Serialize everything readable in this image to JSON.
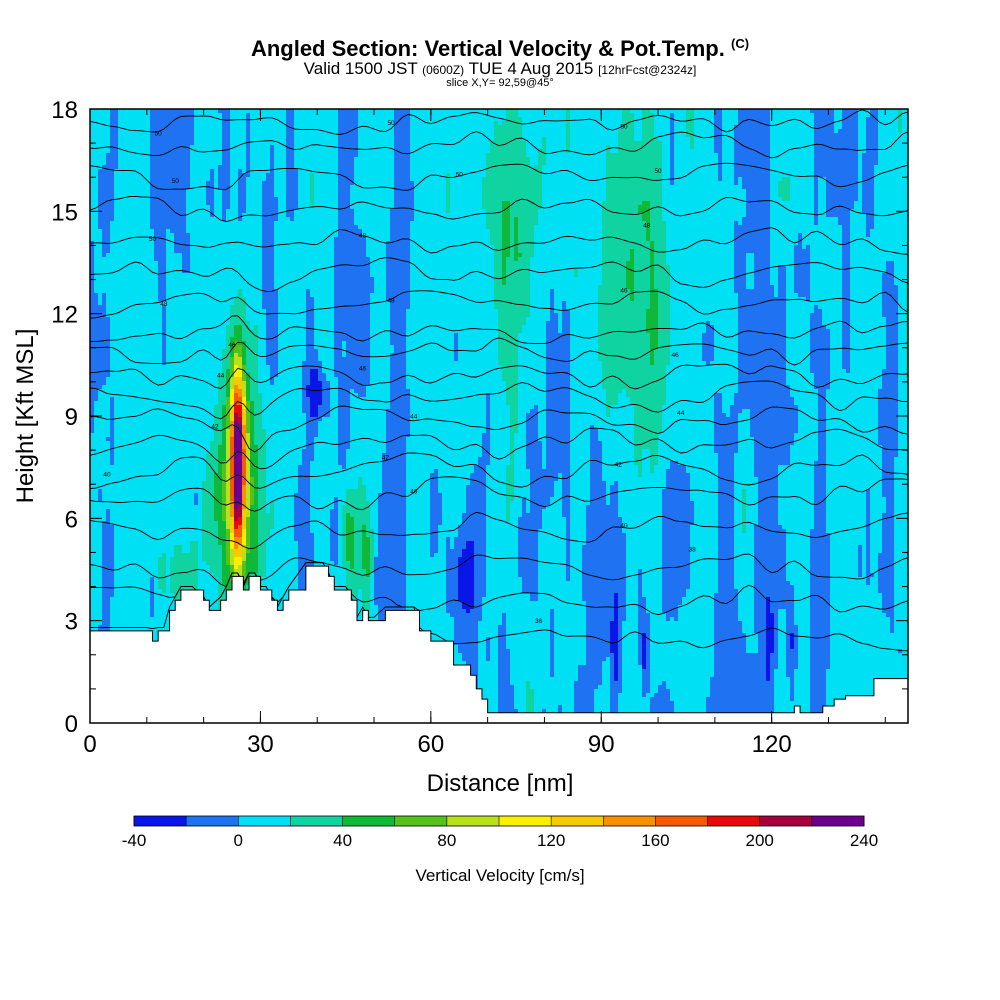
{
  "chart_data": {
    "type": "heatmap",
    "title": "Angled Section: Vertical Velocity & Pot.Temp.",
    "title_unit": "(C)",
    "subtitle": {
      "pre": "Valid 1500 JST",
      "utc": "(0600Z)",
      "date": "TUE 4 Aug 2015",
      "fcst": "[12hrFcst@2324z]"
    },
    "slice_label": "slice X,Y= 92,59@45°",
    "xlabel": "Distance [nm]",
    "ylabel": "Height [Kft MSL]",
    "xlim": [
      0,
      144
    ],
    "ylim": [
      0,
      18
    ],
    "x_ticks": [
      0,
      30,
      60,
      90,
      120
    ],
    "y_ticks": [
      0,
      3,
      6,
      9,
      12,
      15,
      18
    ],
    "grid": false,
    "colorbar": {
      "label": "Vertical Velocity [cm/s]",
      "position": "bottom",
      "bounds": [
        -40,
        -20,
        0,
        20,
        40,
        60,
        80,
        100,
        120,
        140,
        160,
        180,
        200,
        220,
        240
      ],
      "tick_values": [
        -40,
        0,
        40,
        80,
        120,
        160,
        200,
        240
      ],
      "colors": [
        "#0a16e8",
        "#1f73f3",
        "#00e0f5",
        "#0fd3a0",
        "#10b83a",
        "#55c21b",
        "#b8e01b",
        "#f8f000",
        "#f6ca00",
        "#f79000",
        "#f55a00",
        "#e80a0a",
        "#a8003e",
        "#6d008a"
      ]
    },
    "isentrope_labels": [
      "50",
      "50",
      "50",
      "50",
      "50",
      "50",
      "50",
      "48",
      "48",
      "48",
      "48",
      "46",
      "46",
      "46",
      "46",
      "44",
      "44",
      "44",
      "42",
      "42",
      "42",
      "40",
      "40",
      "40",
      "38",
      "36",
      "34",
      "32",
      "30"
    ],
    "updraft_core": {
      "x": 26,
      "z_range": [
        4.5,
        11.5
      ],
      "max_cm_s": 210
    },
    "terrain_profile": {
      "x": [
        0,
        10,
        11,
        12,
        13,
        14,
        15,
        16,
        17,
        18,
        20,
        21,
        23,
        24,
        25,
        26,
        27,
        28,
        29,
        30,
        31,
        32,
        33,
        34,
        35,
        38,
        41,
        42,
        43,
        45,
        46,
        47,
        48,
        49,
        50,
        52,
        57,
        58,
        60,
        64,
        66,
        67,
        68,
        69,
        70,
        80,
        110,
        111,
        114,
        123,
        124,
        125,
        129,
        131,
        133,
        138,
        140,
        144
      ],
      "z": [
        2.7,
        2.7,
        2.4,
        2.7,
        2.7,
        3.3,
        3.6,
        3.9,
        3.9,
        3.9,
        3.6,
        3.3,
        3.6,
        3.9,
        4.3,
        4.3,
        3.9,
        4.3,
        4.3,
        3.9,
        3.9,
        3.6,
        3.3,
        3.6,
        3.9,
        4.6,
        4.6,
        4.3,
        3.9,
        3.9,
        3.6,
        3.0,
        3.3,
        3.0,
        3.0,
        3.3,
        3.3,
        2.7,
        2.4,
        1.7,
        1.7,
        1.4,
        1.0,
        0.7,
        0.3,
        0.3,
        0.3,
        0.3,
        0.3,
        0.3,
        0.5,
        0.3,
        0.5,
        0.7,
        0.8,
        1.3,
        1.3,
        1.3
      ]
    },
    "isentrope_levels": [
      {
        "label": "34",
        "base": 2.5,
        "amp": 0.15
      },
      {
        "label": "36",
        "base": 3.6,
        "amp": 0.2
      },
      {
        "label": "38",
        "base": 4.6,
        "amp": 0.2
      },
      {
        "label": "40",
        "base": 5.7,
        "amp": 0.25
      },
      {
        "label": "40",
        "base": 6.7,
        "amp": 0.3
      },
      {
        "label": "42",
        "base": 7.4,
        "amp": 0.3
      },
      {
        "label": "42",
        "base": 8.2,
        "amp": 0.25
      },
      {
        "label": "42",
        "base": 8.9,
        "amp": 0.25
      },
      {
        "label": "44",
        "base": 9.6,
        "amp": 0.25
      },
      {
        "label": "44",
        "base": 10.2,
        "amp": 0.25
      },
      {
        "label": "44",
        "base": 10.9,
        "amp": 0.2
      },
      {
        "label": "46",
        "base": 11.5,
        "amp": 0.2
      },
      {
        "label": "46",
        "base": 12.3,
        "amp": 0.2
      },
      {
        "label": "46",
        "base": 13.2,
        "amp": 0.2
      },
      {
        "label": "46",
        "base": 14.1,
        "amp": 0.2
      },
      {
        "label": "48",
        "base": 15.1,
        "amp": 0.2
      },
      {
        "label": "48",
        "base": 16.0,
        "amp": 0.2
      },
      {
        "label": "48",
        "base": 16.9,
        "amp": 0.2
      },
      {
        "label": "50",
        "base": 17.6,
        "amp": 0.15
      }
    ]
  }
}
